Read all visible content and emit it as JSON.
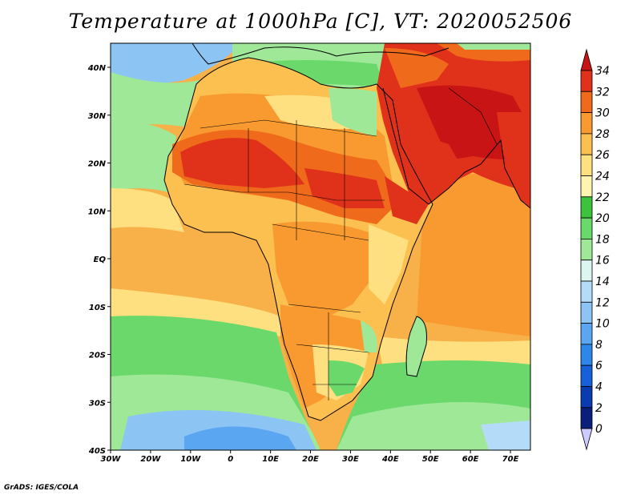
{
  "title": "Temperature at 1000hPa [C], VT: 2020052506",
  "credit": "GrADS: IGES/COLA",
  "map": {
    "lon_range": [
      -30,
      75
    ],
    "lat_range": [
      -40,
      45
    ],
    "lon_ticks": [
      "30W",
      "20W",
      "10W",
      "0",
      "10E",
      "20E",
      "30E",
      "40E",
      "50E",
      "60E",
      "70E"
    ],
    "lat_ticks": [
      "40N",
      "30N",
      "20N",
      "10N",
      "EQ",
      "10S",
      "20S",
      "30S",
      "40S"
    ]
  },
  "colorbar": {
    "levels": [
      "0",
      "2",
      "4",
      "6",
      "8",
      "10",
      "12",
      "14",
      "16",
      "18",
      "20",
      "22",
      "24",
      "26",
      "28",
      "30",
      "32",
      "34"
    ],
    "colors": [
      "#ccccff",
      "#0a1f7a",
      "#0b3bb0",
      "#1660d8",
      "#2e86e8",
      "#5aa6f0",
      "#8cc4f4",
      "#b4dcf8",
      "#dcf5f0",
      "#9ee898",
      "#6ad86a",
      "#3cc23c",
      "#fff5b0",
      "#ffe080",
      "#fcc050",
      "#f89a30",
      "#f06a1c",
      "#e0321a",
      "#c81414"
    ]
  }
}
